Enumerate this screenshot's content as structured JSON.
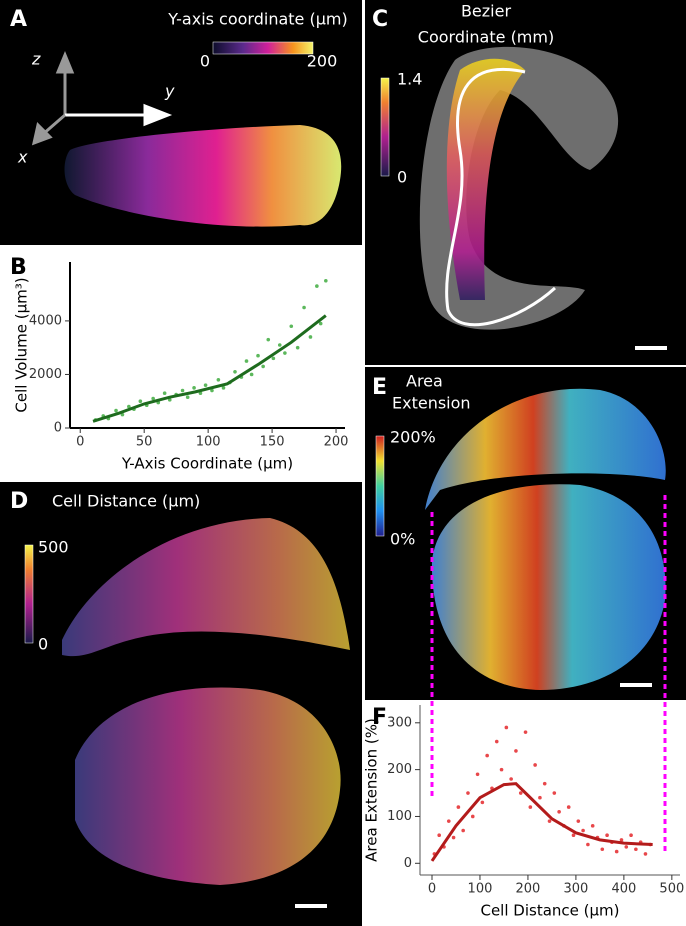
{
  "panels": {
    "a": {
      "label": "A",
      "title": "Y-axis  coordinate (μm)",
      "colorbar_min": "0",
      "colorbar_max": "200",
      "axes": [
        "z",
        "y",
        "x"
      ]
    },
    "b": {
      "label": "B"
    },
    "c": {
      "label": "C",
      "title_lines": [
        "Bezier",
        "Coordinate (mm)"
      ],
      "colorbar_max": "1.4",
      "colorbar_min": "0"
    },
    "d": {
      "label": "D",
      "title": "Cell Distance (μm)",
      "colorbar_max": "500",
      "colorbar_min": "0"
    },
    "e": {
      "label": "E",
      "title_lines": [
        "Area",
        "Extension"
      ],
      "colorbar_max": "200%",
      "colorbar_min": "0%"
    },
    "f": {
      "label": "F"
    }
  },
  "chart_data": [
    {
      "type": "scatter",
      "x_label": "Y-Axis Coordinate (μm)",
      "y_label": "Cell Volume (μm³)",
      "xlim": [
        -8,
        207
      ],
      "xticks": [
        0,
        50,
        100,
        150,
        200
      ],
      "ylim": [
        0,
        6200
      ],
      "yticks": [
        0,
        2000,
        4000
      ],
      "points": {
        "color": "#5cb85c",
        "x": [
          12,
          18,
          22,
          28,
          33,
          38,
          42,
          47,
          52,
          57,
          61,
          66,
          70,
          75,
          80,
          84,
          89,
          94,
          98,
          103,
          108,
          112,
          117,
          121,
          126,
          130,
          134,
          139,
          143,
          147,
          151,
          156,
          160,
          165,
          170,
          175,
          180,
          185,
          188,
          192
        ],
        "y": [
          300,
          450,
          350,
          650,
          500,
          800,
          700,
          1000,
          850,
          1100,
          950,
          1300,
          1050,
          1250,
          1400,
          1150,
          1500,
          1300,
          1600,
          1400,
          1800,
          1500,
          1700,
          2100,
          1900,
          2500,
          2000,
          2700,
          2300,
          3300,
          2600,
          3100,
          2800,
          3800,
          3000,
          4500,
          3400,
          5300,
          3900,
          5500
        ]
      },
      "fit": {
        "color": "#1e6b1e",
        "x": [
          10,
          30,
          50,
          70,
          90,
          115,
          140,
          165,
          192
        ],
        "y": [
          250,
          550,
          900,
          1150,
          1350,
          1650,
          2400,
          3200,
          4200
        ]
      }
    },
    {
      "type": "scatter",
      "x_label": "Cell Distance (μm)",
      "y_label": "Area Extension (%)",
      "xlim": [
        -25,
        517
      ],
      "xticks": [
        0,
        100,
        200,
        300,
        400,
        500
      ],
      "ylim": [
        -25,
        338
      ],
      "yticks": [
        0,
        100,
        200,
        300
      ],
      "points": {
        "color": "#e8474a",
        "x": [
          5,
          15,
          25,
          35,
          45,
          55,
          65,
          75,
          85,
          95,
          105,
          115,
          125,
          135,
          145,
          155,
          165,
          175,
          185,
          195,
          205,
          215,
          225,
          235,
          245,
          255,
          265,
          275,
          285,
          295,
          305,
          315,
          325,
          335,
          345,
          355,
          365,
          375,
          385,
          395,
          405,
          415,
          425,
          435,
          445,
          455
        ],
        "y": [
          20,
          60,
          35,
          90,
          55,
          120,
          70,
          150,
          100,
          190,
          130,
          230,
          160,
          260,
          200,
          290,
          180,
          240,
          150,
          280,
          120,
          210,
          140,
          170,
          90,
          150,
          110,
          80,
          120,
          60,
          90,
          70,
          40,
          80,
          55,
          30,
          60,
          45,
          25,
          50,
          35,
          60,
          30,
          45,
          20,
          40
        ]
      },
      "fit": {
        "color": "#b31b1b",
        "x": [
          0,
          50,
          100,
          150,
          175,
          200,
          250,
          300,
          350,
          400,
          460
        ],
        "y": [
          5,
          80,
          140,
          168,
          170,
          145,
          95,
          65,
          50,
          43,
          40
        ]
      }
    }
  ]
}
